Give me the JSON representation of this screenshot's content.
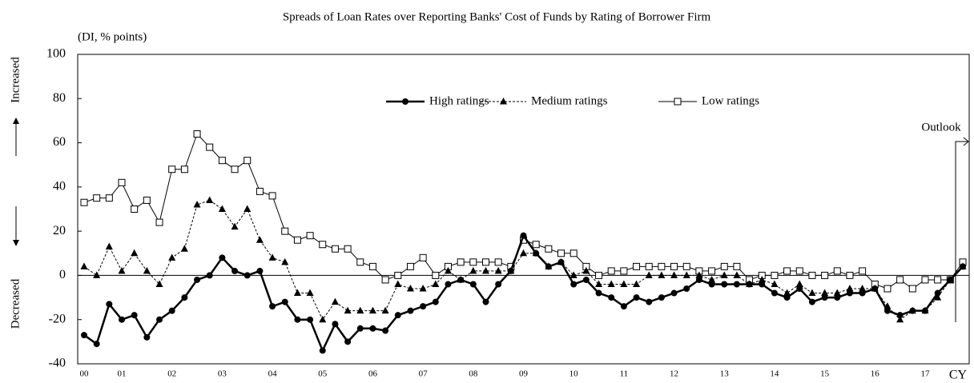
{
  "chart_data": {
    "type": "line",
    "title": "Spreads of Loan Rates over Reporting Banks' Cost of Funds by Rating of Borrower Firm",
    "subtitle": "(DI, % points)",
    "y_label_up": "Increased",
    "y_label_down": "Decreased",
    "x_label": "CY",
    "annotation": "Outlook",
    "categories": [
      "00",
      null,
      null,
      "01",
      null,
      null,
      null,
      "02",
      null,
      null,
      null,
      "03",
      null,
      null,
      null,
      "04",
      null,
      null,
      null,
      "05",
      null,
      null,
      null,
      "06",
      null,
      null,
      null,
      "07",
      null,
      null,
      null,
      "08",
      null,
      null,
      null,
      "09",
      null,
      null,
      null,
      "10",
      null,
      null,
      null,
      "11",
      null,
      null,
      null,
      "12",
      null,
      null,
      null,
      "13",
      null,
      null,
      null,
      "14",
      null,
      null,
      null,
      "15",
      null,
      null,
      null,
      "16",
      null,
      null,
      null,
      "17",
      null,
      null,
      null
    ],
    "series": [
      {
        "name": "High ratings",
        "color": "#000000",
        "marker": "circle",
        "dash": "solid",
        "values": [
          -27,
          -31,
          -13,
          -20,
          -18,
          -28,
          -20,
          -16,
          -10,
          -2,
          0,
          8,
          2,
          0,
          2,
          -14,
          -12,
          -20,
          -20,
          -34,
          -22,
          -30,
          -24,
          -24,
          -25,
          -18,
          -16,
          -14,
          -12,
          -4,
          -2,
          -4,
          -12,
          -4,
          2,
          18,
          10,
          4,
          6,
          -4,
          -2,
          -8,
          -10,
          -14,
          -10,
          -12,
          -10,
          -8,
          -6,
          -2,
          -4,
          -4,
          -4,
          -4,
          -4,
          -8,
          -10,
          -6,
          -12,
          -10,
          -10,
          -8,
          -8,
          -6,
          -16,
          -18,
          -16,
          -16,
          -8,
          -2,
          4
        ]
      },
      {
        "name": "Medium ratings",
        "color": "#000000",
        "marker": "triangle",
        "dash": "dashed",
        "values": [
          4,
          0,
          13,
          2,
          10,
          2,
          -4,
          8,
          12,
          32,
          34,
          30,
          22,
          30,
          16,
          8,
          6,
          -8,
          -8,
          -20,
          -12,
          -16,
          -16,
          -16,
          -16,
          -4,
          -6,
          -6,
          -4,
          2,
          -2,
          2,
          2,
          2,
          2,
          10,
          10,
          4,
          6,
          0,
          2,
          -4,
          -4,
          -4,
          -4,
          0,
          0,
          0,
          0,
          0,
          -2,
          0,
          0,
          -4,
          -2,
          -4,
          -8,
          -4,
          -8,
          -8,
          -8,
          -6,
          -6,
          -6,
          -14,
          -20,
          -16,
          -16,
          -10,
          -2,
          4
        ]
      },
      {
        "name": "Low ratings",
        "color": "#000000",
        "marker": "square",
        "dash": "solid",
        "values": [
          33,
          35,
          35,
          42,
          30,
          34,
          24,
          48,
          48,
          64,
          58,
          52,
          48,
          52,
          38,
          36,
          20,
          16,
          18,
          14,
          12,
          12,
          6,
          4,
          -2,
          0,
          4,
          8,
          0,
          4,
          6,
          6,
          6,
          6,
          4,
          16,
          14,
          12,
          10,
          10,
          4,
          0,
          2,
          2,
          4,
          4,
          4,
          4,
          4,
          2,
          2,
          4,
          4,
          -2,
          0,
          0,
          2,
          2,
          0,
          0,
          2,
          0,
          2,
          -4,
          -6,
          -2,
          -6,
          -2,
          -2,
          -2,
          6
        ]
      }
    ],
    "ylim": [
      -40,
      100
    ],
    "yticks": [
      -40,
      -20,
      0,
      20,
      40,
      60,
      80,
      100
    ],
    "zero_line": true,
    "legend": "top"
  }
}
